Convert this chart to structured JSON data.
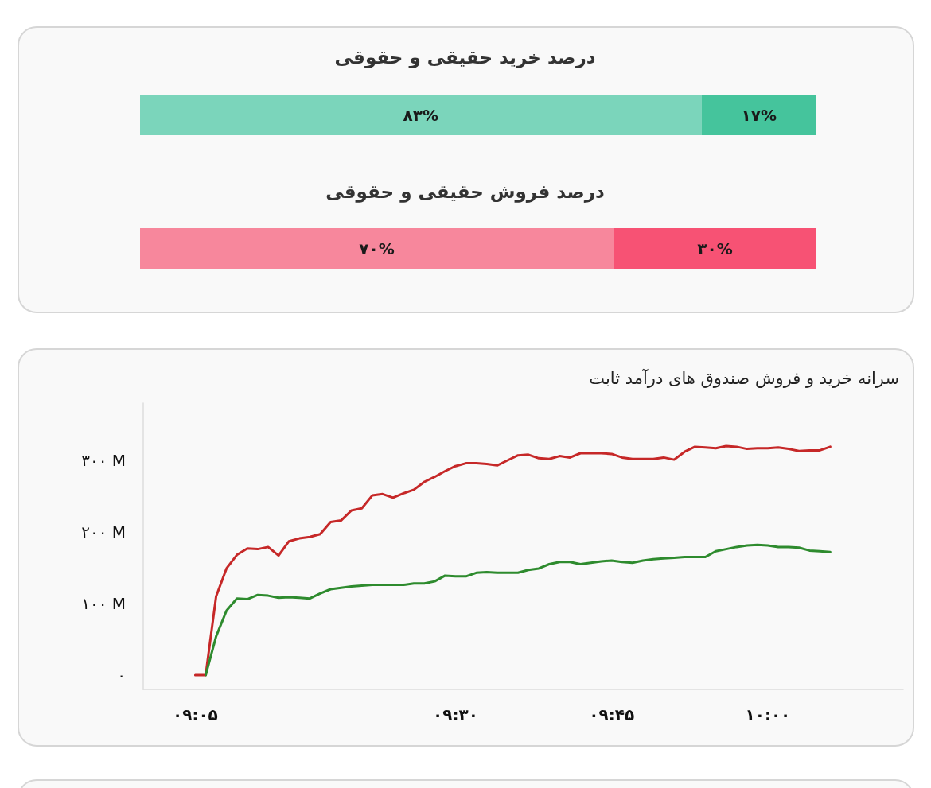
{
  "chart_data": [
    {
      "type": "bar",
      "orientation": "horizontal",
      "stacked": true,
      "title": "درصد خرید حقیقی و حقوقی",
      "categories": [
        null
      ],
      "tick_labels": false,
      "series": [
        {
          "color": "#7bd5bb",
          "values": [
            83
          ],
          "value_labels": [
            "۸۳%"
          ]
        },
        {
          "color": "#45c49c",
          "values": [
            17
          ],
          "value_labels": [
            "۱۷%"
          ]
        }
      ]
    },
    {
      "type": "bar",
      "orientation": "horizontal",
      "stacked": true,
      "title": "درصد فروش حقیقی و حقوقی",
      "categories": [
        null
      ],
      "tick_labels": false,
      "series": [
        {
          "color": "#f7879c",
          "values": [
            70
          ],
          "value_labels": [
            "۷۰%"
          ]
        },
        {
          "color": "#f75274",
          "values": [
            30
          ],
          "value_labels": [
            "۳۰%"
          ]
        }
      ]
    },
    {
      "type": "line",
      "title": "سرانه خرید و فروش صندوق های درآمد ثابت",
      "grid": false,
      "xlim": [
        9.0,
        10.2167
      ],
      "ylim": [
        -20,
        380
      ],
      "xticks": [
        {
          "value": 9.0833,
          "label": "۰۹:۰۵"
        },
        {
          "value": 9.5,
          "label": "۰۹:۳۰"
        },
        {
          "value": 9.75,
          "label": "۰۹:۴۵"
        },
        {
          "value": 10,
          "label": "۱۰:۰۰"
        }
      ],
      "yticks": [
        {
          "value": 0,
          "label": "۰"
        },
        {
          "value": 100,
          "label": "۱۰۰ M"
        },
        {
          "value": 200,
          "label": "۲۰۰ M"
        },
        {
          "value": 300,
          "label": "۳۰۰ M"
        }
      ],
      "x": [
        9.0833,
        9.1,
        9.1167,
        9.1333,
        9.15,
        9.1667,
        9.1833,
        9.2,
        9.2167,
        9.2333,
        9.25,
        9.2667,
        9.2833,
        9.3,
        9.3167,
        9.3333,
        9.35,
        9.3667,
        9.3833,
        9.4,
        9.4167,
        9.4333,
        9.45,
        9.4667,
        9.4833,
        9.5,
        9.5167,
        9.5333,
        9.55,
        9.5667,
        9.5833,
        9.6,
        9.6167,
        9.6333,
        9.65,
        9.6667,
        9.6833,
        9.7,
        9.7167,
        9.7333,
        9.75,
        9.7667,
        9.7833,
        9.8,
        9.8167,
        9.8333,
        9.85,
        9.8667,
        9.8833,
        9.9,
        9.9167,
        9.9333,
        9.95,
        9.9667,
        9.9833,
        10,
        10.0167,
        10.0333,
        10.05,
        10.0667,
        10.0833,
        10.1
      ],
      "series": [
        {
          "color": "#c62828",
          "values": [
            0,
            0,
            110,
            149,
            168,
            177,
            176,
            179,
            167,
            187,
            191,
            193,
            197,
            214,
            216,
            230,
            233,
            251,
            253,
            248,
            254,
            259,
            270,
            277,
            285,
            292,
            296,
            296,
            295,
            293,
            300,
            307,
            308,
            303,
            302,
            306,
            304,
            310,
            310,
            310,
            309,
            304,
            302,
            302,
            302,
            304,
            301,
            312,
            319,
            318,
            317,
            320,
            319,
            316,
            317,
            317,
            318,
            316,
            313,
            314,
            314,
            319
          ]
        },
        {
          "color": "#2e8b2e",
          "values": [
            null,
            0,
            54,
            90,
            107,
            106,
            112,
            111,
            108,
            109,
            108,
            107,
            114,
            120,
            122,
            124,
            125,
            126,
            126,
            126,
            126,
            128,
            128,
            131,
            139,
            138,
            138,
            143,
            144,
            143,
            143,
            143,
            147,
            149,
            155,
            158,
            158,
            155,
            157,
            159,
            160,
            158,
            157,
            160,
            162,
            163,
            164,
            165,
            165,
            165,
            173,
            176,
            179,
            181,
            182,
            181,
            179,
            179,
            178,
            174,
            173,
            172
          ]
        }
      ]
    }
  ]
}
